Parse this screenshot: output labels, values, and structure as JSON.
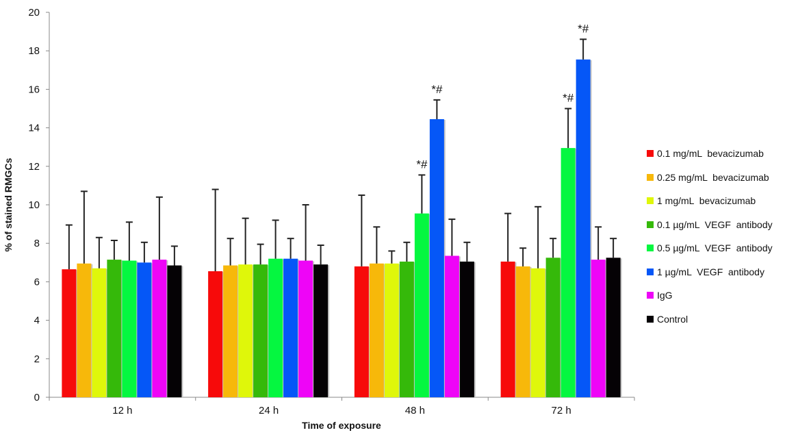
{
  "chart_data": {
    "type": "bar",
    "title": "",
    "xlabel": "Time of exposure",
    "ylabel": "% of stained RMGCs",
    "ylim": [
      0,
      20
    ],
    "yticks": [
      0,
      2,
      4,
      6,
      8,
      10,
      12,
      14,
      16,
      18,
      20
    ],
    "grid": false,
    "legend_position": "right",
    "categories": [
      "12 h",
      "24 h",
      "48 h",
      "72 h"
    ],
    "series": [
      {
        "name": "0.1 mg/mL  bevacizumab",
        "color": "#f70a0a",
        "values": [
          6.65,
          6.55,
          6.8,
          7.05
        ],
        "error_upper": [
          8.95,
          10.8,
          10.5,
          9.55
        ]
      },
      {
        "name": "0.25 mg/mL  bevacizumab",
        "color": "#f7b80a",
        "values": [
          6.95,
          6.85,
          6.95,
          6.8
        ],
        "error_upper": [
          10.7,
          8.25,
          8.85,
          7.75
        ]
      },
      {
        "name": "1 mg/mL  bevacizumab",
        "color": "#dff70a",
        "values": [
          6.7,
          6.9,
          6.95,
          6.7
        ],
        "error_upper": [
          8.3,
          9.3,
          7.6,
          9.9
        ]
      },
      {
        "name": "0.1 µg/mL  VEGF  antibody",
        "color": "#35b90a",
        "values": [
          7.15,
          6.9,
          7.05,
          7.25
        ],
        "error_upper": [
          8.15,
          7.95,
          8.05,
          8.25
        ]
      },
      {
        "name": "0.5 µg/mL  VEGF  antibody",
        "color": "#05f740",
        "values": [
          7.1,
          7.2,
          9.55,
          12.95
        ],
        "error_upper": [
          9.1,
          9.2,
          11.55,
          15.0
        ]
      },
      {
        "name": "1 µg/mL  VEGF  antibody",
        "color": "#0557f7",
        "values": [
          7.0,
          7.2,
          14.45,
          17.55
        ],
        "error_upper": [
          8.05,
          8.25,
          15.45,
          18.6
        ]
      },
      {
        "name": "IgG",
        "color": "#ee05f7",
        "values": [
          7.15,
          7.1,
          7.35,
          7.15
        ],
        "error_upper": [
          10.4,
          10.0,
          9.25,
          8.85
        ]
      },
      {
        "name": "Control",
        "color": "#050205",
        "values": [
          6.85,
          6.9,
          7.05,
          7.25
        ],
        "error_upper": [
          7.85,
          7.9,
          8.05,
          8.25
        ]
      }
    ],
    "annotations": [
      {
        "text": "*#",
        "category": "48 h",
        "series": "0.5 µg/mL  VEGF  antibody"
      },
      {
        "text": "*#",
        "category": "48 h",
        "series": "1 µg/mL  VEGF  antibody"
      },
      {
        "text": "*#",
        "category": "72 h",
        "series": "0.5 µg/mL  VEGF  antibody"
      },
      {
        "text": "*#",
        "category": "72 h",
        "series": "1 µg/mL  VEGF  antibody"
      }
    ]
  }
}
